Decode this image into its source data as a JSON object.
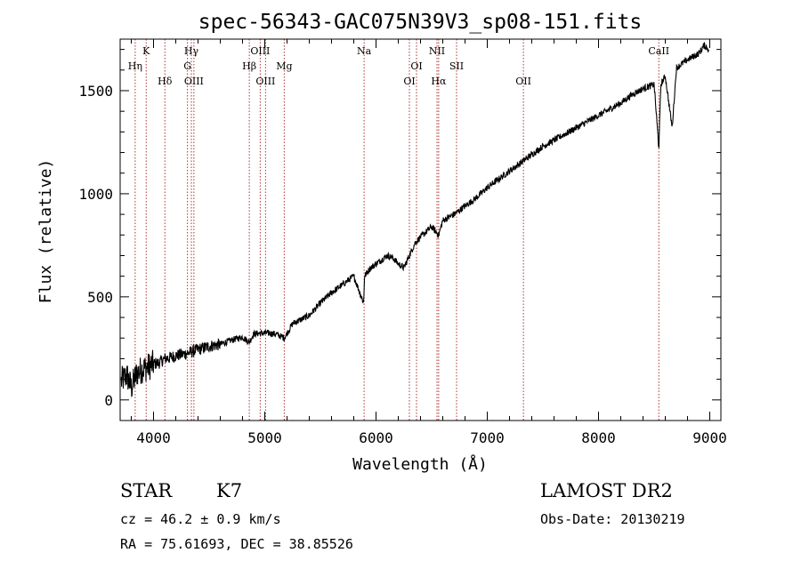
{
  "chart_data": {
    "type": "line",
    "title": "spec-56343-GAC075N39V3_sp08-151.fits",
    "xlabel": "Wavelength (Å)",
    "ylabel": "Flux (relative)",
    "xlim": [
      3700,
      9100
    ],
    "ylim": [
      -100,
      1750
    ],
    "x_ticks": [
      4000,
      5000,
      6000,
      7000,
      8000,
      9000
    ],
    "y_ticks": [
      0,
      500,
      1000,
      1500
    ],
    "x_tick_labels": [
      "4000",
      "5000",
      "6000",
      "7000",
      "8000",
      "9000"
    ],
    "y_tick_labels": [
      "0",
      "500",
      "1000",
      "1500"
    ],
    "grid": false,
    "colors": {
      "spectrum": "#000000",
      "line_marker": "#b03030",
      "axes": "#000000"
    },
    "series": [
      {
        "x": [
          3710,
          3760,
          3800,
          3850,
          3900,
          3950,
          4000,
          4050,
          4100,
          4150,
          4200,
          4300,
          4400,
          4500,
          4600,
          4700,
          4800,
          4861,
          4900,
          5000,
          5100,
          5175,
          5250,
          5400,
          5500,
          5600,
          5700,
          5800,
          5889,
          5896,
          5950,
          6000,
          6100,
          6150,
          6200,
          6250,
          6300,
          6350,
          6400,
          6500,
          6563,
          6600,
          6700,
          6800,
          6900,
          7000,
          7100,
          7200,
          7300,
          7400,
          7500,
          7600,
          7700,
          7800,
          7900,
          8000,
          8100,
          8200,
          8300,
          8400,
          8500,
          8542,
          8560,
          8600,
          8662,
          8700,
          8800,
          8900,
          8950,
          8990
        ],
        "y": [
          90,
          120,
          60,
          130,
          150,
          160,
          175,
          180,
          200,
          205,
          215,
          225,
          245,
          260,
          270,
          290,
          305,
          280,
          320,
          325,
          320,
          300,
          370,
          410,
          470,
          520,
          560,
          600,
          470,
          600,
          640,
          660,
          700,
          690,
          660,
          640,
          700,
          760,
          790,
          840,
          800,
          870,
          900,
          940,
          980,
          1030,
          1070,
          1110,
          1150,
          1190,
          1230,
          1260,
          1290,
          1320,
          1350,
          1380,
          1410,
          1440,
          1480,
          1510,
          1530,
          1220,
          1530,
          1570,
          1320,
          1610,
          1650,
          1680,
          1720,
          1700
        ]
      }
    ],
    "lines": [
      {
        "label": "Hη",
        "wavelength": 3835,
        "row": 2
      },
      {
        "label": "K",
        "wavelength": 3934,
        "row": 1
      },
      {
        "label": "Hδ",
        "wavelength": 4102,
        "row": 3
      },
      {
        "label": "Hγ",
        "wavelength": 4340,
        "row": 1
      },
      {
        "label": "G",
        "wavelength": 4305,
        "row": 2
      },
      {
        "label": "OIII",
        "wavelength": 4363,
        "row": 3
      },
      {
        "label": "Hβ",
        "wavelength": 4861,
        "row": 2
      },
      {
        "label": "OIII",
        "wavelength": 4959,
        "row": 1
      },
      {
        "label": "OIII",
        "wavelength": 5007,
        "row": 3
      },
      {
        "label": "Mg",
        "wavelength": 5175,
        "row": 2
      },
      {
        "label": "Na",
        "wavelength": 5893,
        "row": 1
      },
      {
        "label": "OI",
        "wavelength": 6300,
        "row": 3
      },
      {
        "label": "OI",
        "wavelength": 6364,
        "row": 2
      },
      {
        "label": "NII",
        "wavelength": 6548,
        "row": 1
      },
      {
        "label": "Hα",
        "wavelength": 6563,
        "row": 3
      },
      {
        "label": "SII",
        "wavelength": 6724,
        "row": 2
      },
      {
        "label": "OII",
        "wavelength": 7325,
        "row": 3
      },
      {
        "label": "CaII",
        "wavelength": 8542,
        "row": 1
      }
    ]
  },
  "footer": {
    "class_label": "STAR",
    "subclass_label": "K7",
    "survey_label": "LAMOST DR2",
    "cz_text": "cz = 46.2 ± 0.9 km/s",
    "obs_date_text": "Obs-Date: 20130219",
    "radec_text": "RA =  75.61693, DEC =  38.85526"
  }
}
